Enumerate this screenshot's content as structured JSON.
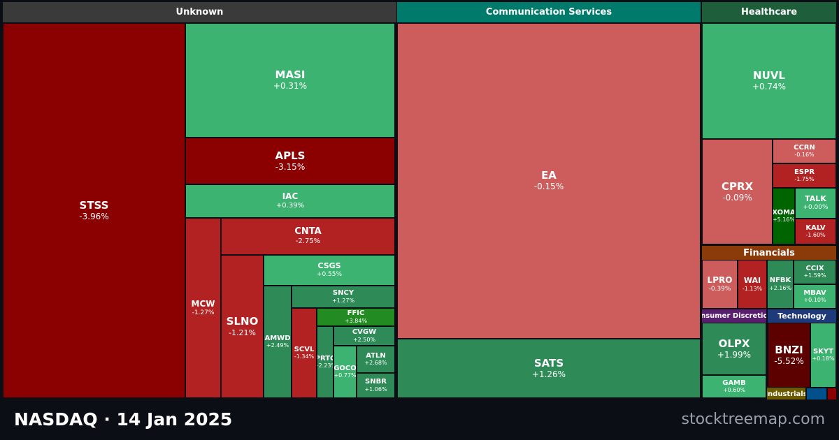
{
  "chart_data": {
    "type": "treemap",
    "colors": {
      "header_bg": "#3a3a3a",
      "strong_up": "#1e8c2a",
      "up": "#2e8b57",
      "mild_up": "#3cb371",
      "mild_down": "#cd5c5c",
      "down": "#b22222",
      "strong_down": "#8b0000",
      "extreme_down": "#5c0000",
      "extreme_up": "#006400"
    },
    "sectors": [
      {
        "name": "Unknown",
        "header_color": "#3a3a3a",
        "stocks": [
          {
            "symbol": "STSS",
            "change": "-3.96%",
            "color": "#8b0000"
          },
          {
            "symbol": "MASI",
            "change": "+0.31%",
            "color": "#3cb371"
          },
          {
            "symbol": "APLS",
            "change": "-3.15%",
            "color": "#8b0000"
          },
          {
            "symbol": "IAC",
            "change": "+0.39%",
            "color": "#3cb371"
          },
          {
            "symbol": "CNTA",
            "change": "-2.75%",
            "color": "#b22222"
          },
          {
            "symbol": "MCW",
            "change": "-1.27%",
            "color": "#b22222"
          },
          {
            "symbol": "SLNO",
            "change": "-1.21%",
            "color": "#b22222"
          },
          {
            "symbol": "CSGS",
            "change": "+0.55%",
            "color": "#3cb371"
          },
          {
            "symbol": "SNCY",
            "change": "+1.27%",
            "color": "#2e8b57"
          },
          {
            "symbol": "AMWD",
            "change": "+2.49%",
            "color": "#2e8b57"
          },
          {
            "symbol": "SCVL",
            "change": "-1.34%",
            "color": "#b22222"
          },
          {
            "symbol": "FFIC",
            "change": "+3.84%",
            "color": "#228b22"
          },
          {
            "symbol": "CVGW",
            "change": "+2.50%",
            "color": "#2e8b57"
          },
          {
            "symbol": "PRTC",
            "change": "+2.23%",
            "color": "#2e8b57"
          },
          {
            "symbol": "GOCO",
            "change": "+0.77%",
            "color": "#3cb371"
          },
          {
            "symbol": "ATLN",
            "change": "+2.68%",
            "color": "#2e8b57"
          },
          {
            "symbol": "SNBR",
            "change": "+1.06%",
            "color": "#2e8b57"
          }
        ]
      },
      {
        "name": "Communication Services",
        "header_color": "#007a6a",
        "stocks": [
          {
            "symbol": "EA",
            "change": "-0.15%",
            "color": "#cd5c5c"
          },
          {
            "symbol": "SATS",
            "change": "+1.26%",
            "color": "#2e8b57"
          }
        ]
      },
      {
        "name": "Healthcare",
        "header_color": "#1e5e3a",
        "stocks": [
          {
            "symbol": "NUVL",
            "change": "+0.74%",
            "color": "#3cb371"
          },
          {
            "symbol": "CPRX",
            "change": "-0.09%",
            "color": "#cd5c5c"
          },
          {
            "symbol": "CCRN",
            "change": "-0.16%",
            "color": "#cd5c5c"
          },
          {
            "symbol": "ESPR",
            "change": "-1.75%",
            "color": "#b22222"
          },
          {
            "symbol": "XOMA",
            "change": "+5.16%",
            "color": "#006400"
          },
          {
            "symbol": "TALK",
            "change": "+0.00%",
            "color": "#3cb371"
          },
          {
            "symbol": "KALV",
            "change": "-1.60%",
            "color": "#b22222"
          }
        ]
      },
      {
        "name": "Financials",
        "header_color": "#8b3a0a",
        "stocks": [
          {
            "symbol": "LPRO",
            "change": "-0.39%",
            "color": "#cd5c5c"
          },
          {
            "symbol": "WAI",
            "change": "-1.13%",
            "color": "#b22222"
          },
          {
            "symbol": "NFBK",
            "change": "+2.16%",
            "color": "#2e8b57"
          },
          {
            "symbol": "CCIX",
            "change": "+1.59%",
            "color": "#2e8b57"
          },
          {
            "symbol": "MBAV",
            "change": "+0.10%",
            "color": "#3cb371"
          }
        ]
      },
      {
        "name": "Consumer Discretionary",
        "header_label": "Consumer Discretiona",
        "header_color": "#5a1e6e",
        "stocks": [
          {
            "symbol": "OLPX",
            "change": "+1.99%",
            "color": "#2e8b57"
          },
          {
            "symbol": "GAMB",
            "change": "+0.60%",
            "color": "#3cb371"
          }
        ]
      },
      {
        "name": "Technology",
        "header_color": "#1e3a7a",
        "stocks": [
          {
            "symbol": "BNZI",
            "change": "-5.52%",
            "color": "#5c0000"
          },
          {
            "symbol": "SKYT",
            "change": "+0.18%",
            "color": "#3cb371"
          }
        ]
      },
      {
        "name": "Industrials",
        "header_color": "#6b5a00",
        "stocks": []
      }
    ]
  },
  "footer": {
    "title": "NASDAQ  ·  14 Jan 2025",
    "brand": "stocktreemap.com"
  }
}
